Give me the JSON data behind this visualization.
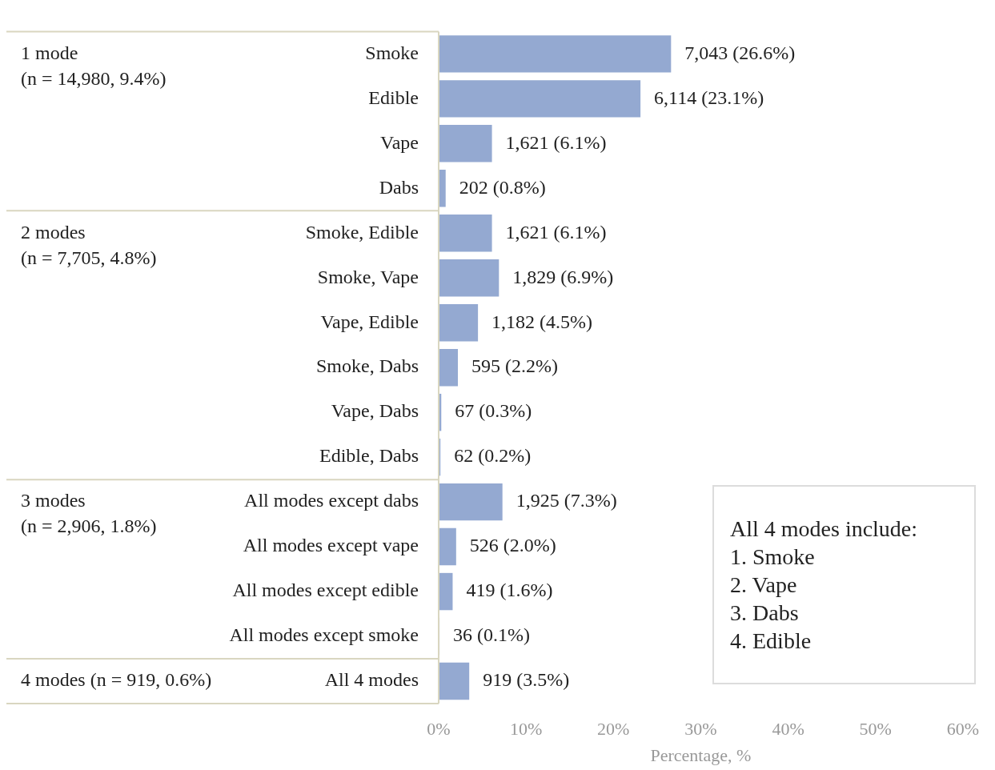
{
  "chart_data": {
    "type": "bar",
    "orientation": "horizontal",
    "categories": [
      "Smoke",
      "Edible",
      "Vape",
      "Dabs",
      "Smoke, Edible",
      "Smoke, Vape",
      "Vape, Edible",
      "Smoke, Dabs",
      "Vape, Dabs",
      "Edible, Dabs",
      "All modes except dabs",
      "All modes except vape",
      "All modes except edible",
      "All modes except smoke",
      "All 4 modes"
    ],
    "values": [
      26.6,
      23.1,
      6.1,
      0.8,
      6.1,
      6.9,
      4.5,
      2.2,
      0.3,
      0.2,
      7.3,
      2.0,
      1.6,
      0.1,
      3.5
    ],
    "value_labels": [
      "7,043 (26.6%)",
      "6,114 (23.1%)",
      "1,621 (6.1%)",
      "202 (0.8%)",
      "1,621 (6.1%)",
      "1,829 (6.9%)",
      "1,182 (4.5%)",
      "595 (2.2%)",
      "67 (0.3%)",
      "62 (0.2%)",
      "1,925 (7.3%)",
      "526 (2.0%)",
      "419 (1.6%)",
      "36 (0.1%)",
      "919 (3.5%)"
    ],
    "color": "#94a9d1",
    "xlabel": "Percentage, %",
    "xlim": [
      0,
      60
    ],
    "xticks": [
      {
        "value": 0,
        "label": "0%"
      },
      {
        "value": 10,
        "label": "10%"
      },
      {
        "value": 20,
        "label": "20%"
      },
      {
        "value": 30,
        "label": "30%"
      },
      {
        "value": 40,
        "label": "40%"
      },
      {
        "value": 50,
        "label": "50%"
      },
      {
        "value": 60,
        "label": "60%"
      }
    ],
    "grid": false,
    "legend": false,
    "annotations": [
      "1 mode\n(n = 14,980, 9.4%)",
      "2 modes\n(n = 7,705, 4.8%)",
      "3 modes\n(n = 2,906, 1.8%)",
      "4 modes (n = 919, 0.6%)",
      "All 4 modes include:\n1. Smoke\n2. Vape\n3. Dabs\n4. Edible"
    ]
  }
}
